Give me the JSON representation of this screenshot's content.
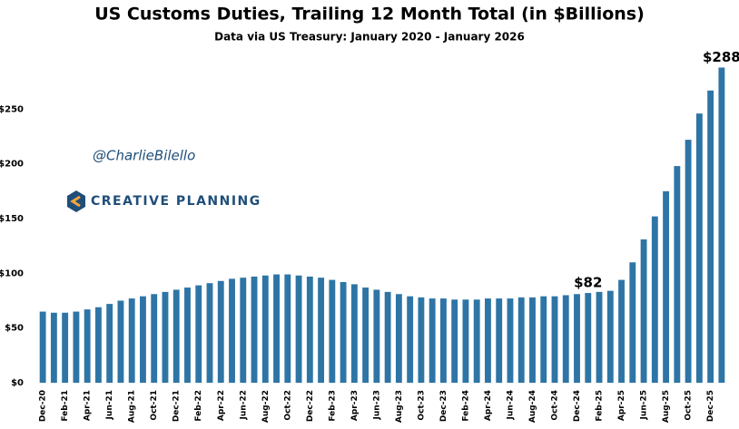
{
  "chart_data": {
    "type": "bar",
    "title": "US Customs Duties, Trailing 12 Month Total (in $Billions)",
    "subtitle": "Data via US Treasury: January 2020 - January 2026",
    "watermark": "@CharlieBilello",
    "logo_text": "CREATIVE PLANNING",
    "color": "#2e75a6",
    "categories": [
      "Dec-20",
      null,
      "Feb-21",
      null,
      "Apr-21",
      null,
      "Jun-21",
      null,
      "Aug-21",
      null,
      "Oct-21",
      null,
      "Dec-21",
      null,
      "Feb-22",
      null,
      "Apr-22",
      null,
      "Jun-22",
      null,
      "Aug-22",
      null,
      "Oct-22",
      null,
      "Dec-22",
      null,
      "Feb-23",
      null,
      "Apr-23",
      null,
      "Jun-23",
      null,
      "Aug-23",
      null,
      "Oct-23",
      null,
      "Dec-23",
      null,
      "Feb-24",
      null,
      "Apr-24",
      null,
      "Jun-24",
      null,
      "Aug-24",
      null,
      "Oct-24",
      null,
      "Dec-24",
      null,
      "Feb-25",
      null,
      "Apr-25",
      null,
      "Jun-25",
      null,
      "Aug-25",
      null,
      "Oct-25",
      null,
      "Dec-25",
      null
    ],
    "values": [
      65,
      64,
      64,
      65,
      67,
      69,
      72,
      75,
      77,
      79,
      81,
      83,
      85,
      87,
      89,
      91,
      93,
      95,
      96,
      97,
      98,
      99,
      99,
      98,
      97,
      96,
      94,
      92,
      90,
      87,
      85,
      83,
      81,
      79,
      78,
      77,
      77,
      76,
      76,
      76,
      77,
      77,
      77,
      78,
      78,
      79,
      79,
      80,
      81,
      82,
      83,
      84,
      94,
      110,
      131,
      152,
      175,
      198,
      222,
      246,
      267,
      288
    ],
    "value_labels": [
      null,
      null,
      null,
      null,
      null,
      null,
      null,
      null,
      null,
      null,
      null,
      null,
      null,
      null,
      null,
      null,
      null,
      null,
      null,
      null,
      null,
      null,
      null,
      null,
      null,
      null,
      null,
      null,
      null,
      null,
      null,
      null,
      null,
      null,
      null,
      null,
      null,
      null,
      null,
      null,
      null,
      null,
      null,
      null,
      null,
      null,
      null,
      null,
      null,
      "$82",
      null,
      null,
      null,
      null,
      null,
      null,
      null,
      null,
      null,
      null,
      null,
      "$288"
    ],
    "ylim": [
      0,
      300
    ],
    "yticks": [
      {
        "value": 0,
        "label": "$0"
      },
      {
        "value": 50,
        "label": "$50"
      },
      {
        "value": 100,
        "label": "$100"
      },
      {
        "value": 150,
        "label": "$150"
      },
      {
        "value": 200,
        "label": "$200"
      },
      {
        "value": 250,
        "label": "$250"
      }
    ],
    "grid": false
  }
}
